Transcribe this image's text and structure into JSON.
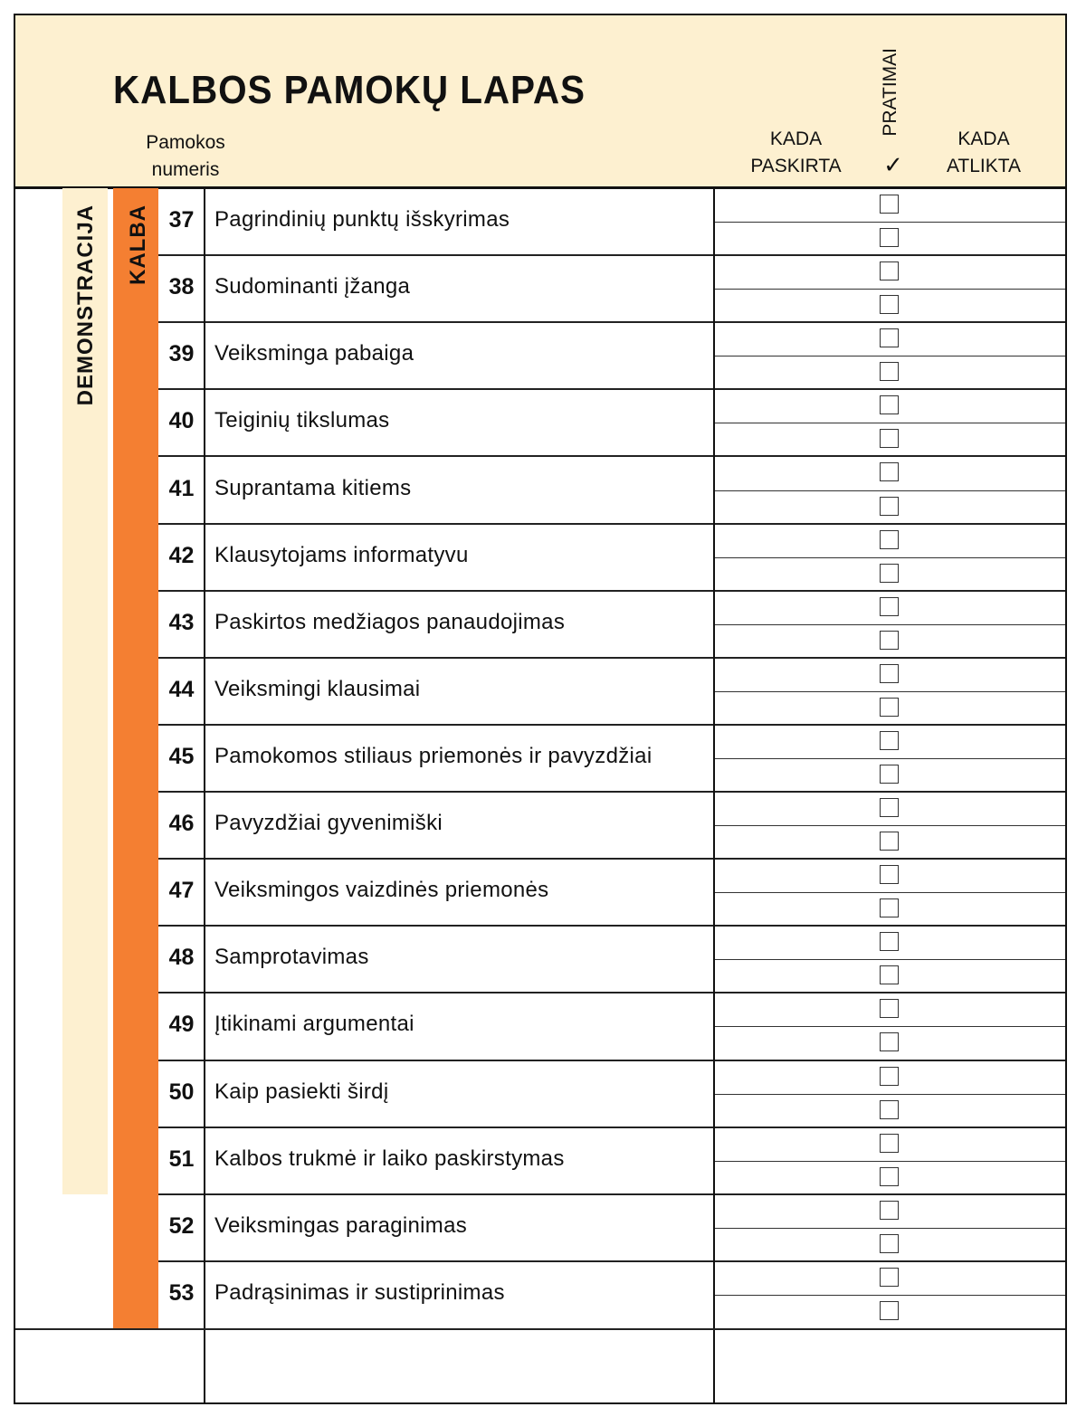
{
  "header": {
    "title": "KALBOS PAMOKŲ LAPAS",
    "lesson_number_label_1": "Pamokos",
    "lesson_number_label_2": "numeris",
    "assigned_label_1": "KADA",
    "assigned_label_2": "PASKIRTA",
    "exercises_label": "PRATIMAI",
    "exercises_check": "✓",
    "completed_label_1": "KADA",
    "completed_label_2": "ATLIKTA"
  },
  "bands": {
    "outer": "DEMONSTRACIJA",
    "inner": "KALBA"
  },
  "colors": {
    "header_bg": "#fdf0d0",
    "orange": "#f47f32",
    "cream": "#fdf0d0"
  },
  "rows": [
    {
      "number": "37",
      "title": "Pagrindinių punktų išskyrimas"
    },
    {
      "number": "38",
      "title": "Sudominanti įžanga"
    },
    {
      "number": "39",
      "title": "Veiksminga pabaiga"
    },
    {
      "number": "40",
      "title": "Teiginių tikslumas"
    },
    {
      "number": "41",
      "title": "Suprantama kitiems"
    },
    {
      "number": "42",
      "title": "Klausytojams informatyvu"
    },
    {
      "number": "43",
      "title": "Paskirtos medžiagos panaudojimas"
    },
    {
      "number": "44",
      "title": "Veiksmingi klausimai"
    },
    {
      "number": "45",
      "title": "Pamokomos stiliaus priemonės ir pavyzdžiai"
    },
    {
      "number": "46",
      "title": "Pavyzdžiai gyvenimiški"
    },
    {
      "number": "47",
      "title": "Veiksmingos vaizdinės priemonės"
    },
    {
      "number": "48",
      "title": "Samprotavimas"
    },
    {
      "number": "49",
      "title": "Įtikinami argumentai"
    },
    {
      "number": "50",
      "title": "Kaip pasiekti širdį"
    },
    {
      "number": "51",
      "title": "Kalbos trukmė ir laiko paskirstymas"
    },
    {
      "number": "52",
      "title": "Veiksmingas paraginimas"
    },
    {
      "number": "53",
      "title": "Padrąsinimas ir sustiprinimas"
    }
  ]
}
